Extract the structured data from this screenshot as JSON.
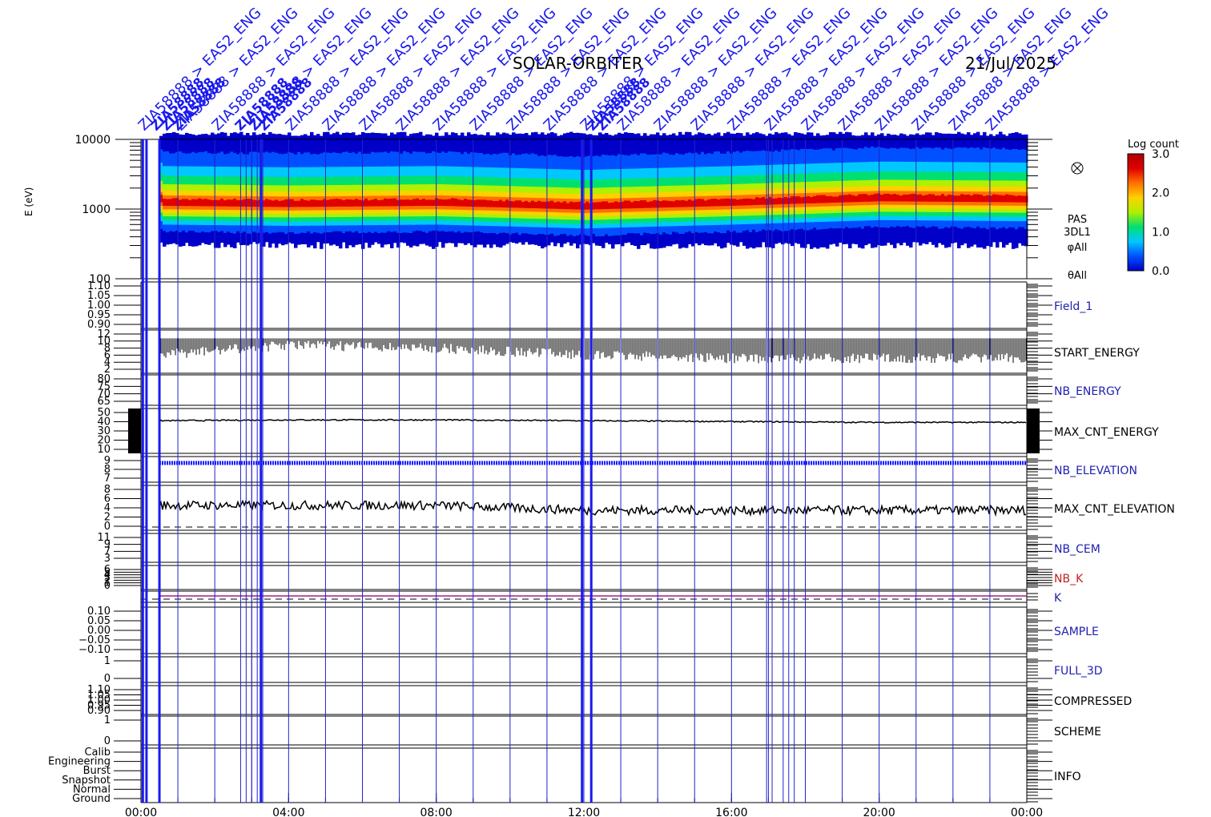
{
  "header": {
    "mission": "SOLAR-ORBITER",
    "date": "21/Jul/2025"
  },
  "spectrogram": {
    "ylabel": "E (eV)",
    "yticks": [
      "10000",
      "1000",
      "100"
    ],
    "ytick_values": [
      10000,
      1000,
      100
    ],
    "ylim": [
      100,
      10000
    ],
    "scale": "log",
    "side_labels": [
      "PAS",
      "3DL1",
      "φAll",
      "θAll"
    ],
    "colorbar": {
      "title": "Log count",
      "ticks": [
        "3.0",
        "2.0",
        "1.0",
        "0.0"
      ],
      "range": [
        0.0,
        3.0
      ],
      "colors": [
        "#0000c8",
        "#0050ff",
        "#00c8ff",
        "#00e070",
        "#b0f000",
        "#ffd000",
        "#ff7000",
        "#e00000",
        "#b00000"
      ]
    }
  },
  "time_axis": {
    "ticks": [
      "00:00",
      "04:00",
      "08:00",
      "12:00",
      "16:00",
      "20:00",
      "00:00"
    ],
    "tick_hours": [
      0,
      4,
      8,
      12,
      16,
      20,
      24
    ]
  },
  "panels": [
    {
      "name": "Field_1",
      "label": "Field_1",
      "color": "#2020b0",
      "ticks": [
        "1.10",
        "1.05",
        "1.00",
        "0.95",
        "0.90"
      ]
    },
    {
      "name": "START_ENERGY",
      "label": "START_ENERGY",
      "color": "#000000",
      "ticks": [
        "12",
        "10",
        "8",
        "6",
        "4",
        "2"
      ]
    },
    {
      "name": "NB_ENERGY",
      "label": "NB_ENERGY",
      "color": "#2020b0",
      "ticks": [
        "80",
        "75",
        "70",
        "65"
      ]
    },
    {
      "name": "MAX_CNT_ENERGY",
      "label": "MAX_CNT_ENERGY",
      "color": "#000000",
      "ticks": [
        "50",
        "40",
        "30",
        "20",
        "10"
      ]
    },
    {
      "name": "NB_ELEVATION",
      "label": "NB_ELEVATION",
      "color": "#2020b0",
      "ticks": [
        "9",
        "8",
        "7"
      ]
    },
    {
      "name": "MAX_CNT_ELEVATION",
      "label": "MAX_CNT_ELEVATION",
      "color": "#000000",
      "ticks": [
        "8",
        "6",
        "4",
        "2",
        "0"
      ]
    },
    {
      "name": "NB_CEM",
      "label": "NB_CEM",
      "color": "#2020b0",
      "ticks": [
        "11",
        "9",
        "7",
        "3"
      ]
    },
    {
      "name": "NB_K",
      "label": "NB_K",
      "color": "#c02020",
      "ticks": [
        "6",
        "5",
        "4",
        "3",
        "2",
        "1",
        "0"
      ]
    },
    {
      "name": "K",
      "label": "K",
      "color": "#2020b0",
      "ticks": []
    },
    {
      "name": "SAMPLE",
      "label": "SAMPLE",
      "color": "#2020b0",
      "ticks": [
        "0.10",
        "0.05",
        "0.00",
        "−0.05",
        "−0.10"
      ]
    },
    {
      "name": "FULL_3D",
      "label": "FULL_3D",
      "color": "#2020b0",
      "ticks": [
        "1",
        "0"
      ]
    },
    {
      "name": "COMPRESSED",
      "label": "COMPRESSED",
      "color": "#000000",
      "ticks": [
        "1.10",
        "1.05",
        "1.00",
        "0.95",
        "0.90"
      ]
    },
    {
      "name": "SCHEME",
      "label": "SCHEME",
      "color": "#000000",
      "ticks": [
        "1",
        "0"
      ]
    },
    {
      "name": "INFO",
      "label": "INFO",
      "color": "#000000",
      "ticks": [
        "Calib",
        "Engineering",
        "Burst",
        "Snapshot",
        "Normal",
        "Ground"
      ]
    }
  ],
  "event_labels": {
    "text_main": "ZIA58888 > EAS2_ENG",
    "text_short": "ZIA58888"
  },
  "chart_data": {
    "type": "heatmap",
    "title": "SOLAR-ORBITER",
    "subtitle": "21/Jul/2025",
    "xlabel": "",
    "ylabel": "E (eV)",
    "x_range_hours": [
      0,
      24
    ],
    "y_range_eV": [
      100,
      10000
    ],
    "y_scale": "log",
    "z_label": "Log count",
    "z_range": [
      0.0,
      3.0
    ],
    "data_start_hour": 0.5,
    "peak_energy_eV": [
      {
        "hour": 0.5,
        "eV": 1250
      },
      {
        "hour": 4,
        "eV": 1200
      },
      {
        "hour": 8,
        "eV": 1250
      },
      {
        "hour": 12,
        "eV": 1100
      },
      {
        "hour": 16,
        "eV": 1250
      },
      {
        "hour": 20,
        "eV": 1450
      },
      {
        "hour": 24,
        "eV": 1400
      }
    ],
    "energy_band_eV": {
      "low": 300,
      "high": 12000
    },
    "series": [
      {
        "name": "MAX_CNT_ENERGY",
        "x": [
          0.5,
          4,
          8,
          12,
          16,
          20,
          24
        ],
        "values": [
          40,
          41,
          41,
          40,
          39,
          38,
          38
        ]
      },
      {
        "name": "MAX_CNT_ELEVATION",
        "x": [
          0.5,
          4,
          8,
          12,
          16,
          20,
          24
        ],
        "values": [
          5,
          5,
          5,
          4,
          4,
          4,
          4
        ]
      },
      {
        "name": "START_ENERGY",
        "x": [
          0.5,
          4,
          8,
          12,
          16,
          20,
          24
        ],
        "values": [
          7,
          10,
          9,
          7,
          6,
          6,
          6
        ]
      }
    ]
  }
}
